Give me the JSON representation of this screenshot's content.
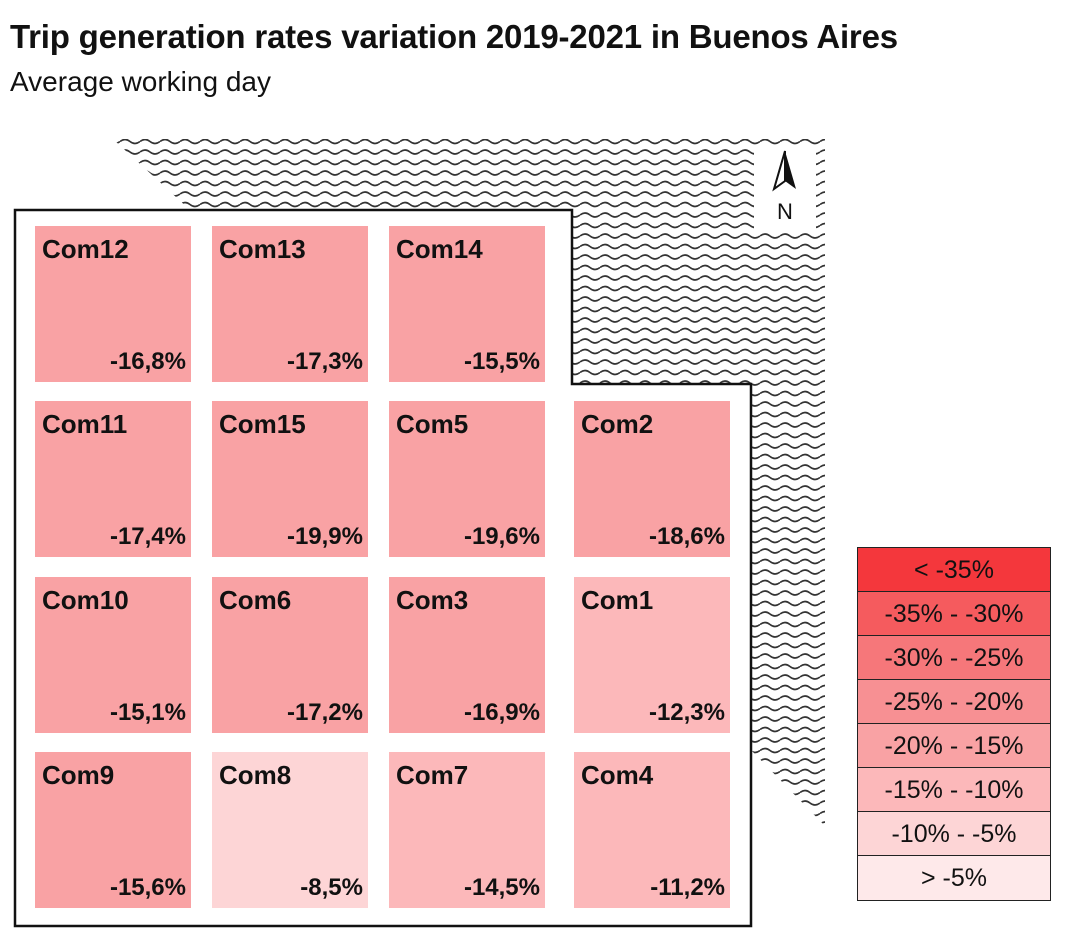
{
  "title": "Trip generation rates variation 2019-2021 in Buenos Aires",
  "subtitle": "Average working day",
  "north_label": "N",
  "colors": {
    "lt35": "#f4373c",
    "35_30": "#f55b5e",
    "30_25": "#f6777a",
    "25_20": "#f79093",
    "20_15": "#f9a2a4",
    "15_10": "#fcb8ba",
    "10_5": "#fdd5d6",
    "gt5": "#fee9ea"
  },
  "legend": [
    {
      "label": "< -35%",
      "color_key": "lt35"
    },
    {
      "label": "-35% - -30%",
      "color_key": "35_30"
    },
    {
      "label": "-30% - -25%",
      "color_key": "30_25"
    },
    {
      "label": "-25% - -20%",
      "color_key": "25_20"
    },
    {
      "label": "-20% - -15%",
      "color_key": "20_15"
    },
    {
      "label": "-15% - -10%",
      "color_key": "15_10"
    },
    {
      "label": "-10% - -5%",
      "color_key": "10_5"
    },
    {
      "label": "> -5%",
      "color_key": "gt5"
    }
  ],
  "communes": [
    {
      "name": "Com12",
      "value": "-16,8%",
      "pct": -16.8,
      "color_key": "20_15"
    },
    {
      "name": "Com13",
      "value": "-17,3%",
      "pct": -17.3,
      "color_key": "20_15"
    },
    {
      "name": "Com14",
      "value": "-15,5%",
      "pct": -15.5,
      "color_key": "20_15"
    },
    {
      "name": "Com11",
      "value": "-17,4%",
      "pct": -17.4,
      "color_key": "20_15"
    },
    {
      "name": "Com15",
      "value": "-19,9%",
      "pct": -19.9,
      "color_key": "20_15"
    },
    {
      "name": "Com5",
      "value": "-19,6%",
      "pct": -19.6,
      "color_key": "20_15"
    },
    {
      "name": "Com2",
      "value": "-18,6%",
      "pct": -18.6,
      "color_key": "20_15"
    },
    {
      "name": "Com10",
      "value": "-15,1%",
      "pct": -15.1,
      "color_key": "20_15"
    },
    {
      "name": "Com6",
      "value": "-17,2%",
      "pct": -17.2,
      "color_key": "20_15"
    },
    {
      "name": "Com3",
      "value": "-16,9%",
      "pct": -16.9,
      "color_key": "20_15"
    },
    {
      "name": "Com1",
      "value": "-12,3%",
      "pct": -12.3,
      "color_key": "15_10"
    },
    {
      "name": "Com9",
      "value": "-15,6%",
      "pct": -15.6,
      "color_key": "20_15"
    },
    {
      "name": "Com8",
      "value": "-8,5%",
      "pct": -8.5,
      "color_key": "10_5"
    },
    {
      "name": "Com7",
      "value": "-14,5%",
      "pct": -14.5,
      "color_key": "15_10"
    },
    {
      "name": "Com4",
      "value": "-11,2%",
      "pct": -11.2,
      "color_key": "15_10"
    }
  ]
}
